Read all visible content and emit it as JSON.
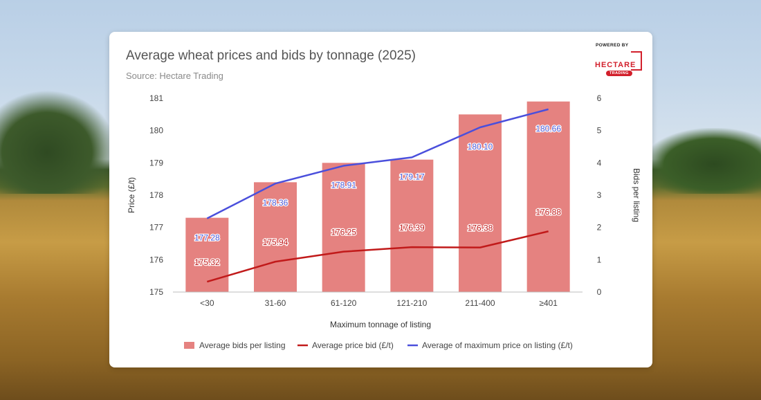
{
  "chart_data": {
    "type": "bar",
    "title": "Average wheat prices and bids by tonnage (2025)",
    "subtitle": "Source: Hectare Trading",
    "xlabel": "Maximum tonnage of listing",
    "ylabel": "Price (£/t)",
    "y2label": "Bids per listing",
    "categories": [
      "<30",
      "31-60",
      "61-120",
      "121-210",
      "211-400",
      "≥401"
    ],
    "ylim": [
      175,
      181
    ],
    "yticks": [
      175,
      176,
      177,
      178,
      179,
      180,
      181
    ],
    "y2lim": [
      0,
      6
    ],
    "y2ticks": [
      0,
      1,
      2,
      3,
      4,
      5,
      6
    ],
    "grid": false,
    "legend_position": "bottom",
    "series": [
      {
        "name": "Average bids per listing",
        "type": "bar",
        "axis": "right",
        "color": "#e58280",
        "values": [
          2.3,
          3.4,
          4.0,
          4.1,
          5.5,
          5.9
        ]
      },
      {
        "name": "Average price bid (£/t)",
        "type": "line",
        "axis": "left",
        "color": "#c11a1a",
        "values": [
          175.32,
          175.94,
          176.25,
          176.39,
          176.38,
          176.88
        ],
        "labels": [
          "175.32",
          "175.94",
          "176.25",
          "176.39",
          "176.38",
          "176.88"
        ]
      },
      {
        "name": "Average of maximum price on listing (£/t)",
        "type": "line",
        "axis": "left",
        "color": "#4a4fdc",
        "values": [
          177.28,
          178.36,
          178.91,
          179.17,
          180.1,
          180.66
        ],
        "labels": [
          "177.28",
          "178.36",
          "178.91",
          "179.17",
          "180.10",
          "180.66"
        ]
      }
    ]
  },
  "logo": {
    "powered_by": "POWERED BY",
    "brand": "HECTARE",
    "sub": "TRADING",
    "accent_color": "#d21f2b"
  }
}
